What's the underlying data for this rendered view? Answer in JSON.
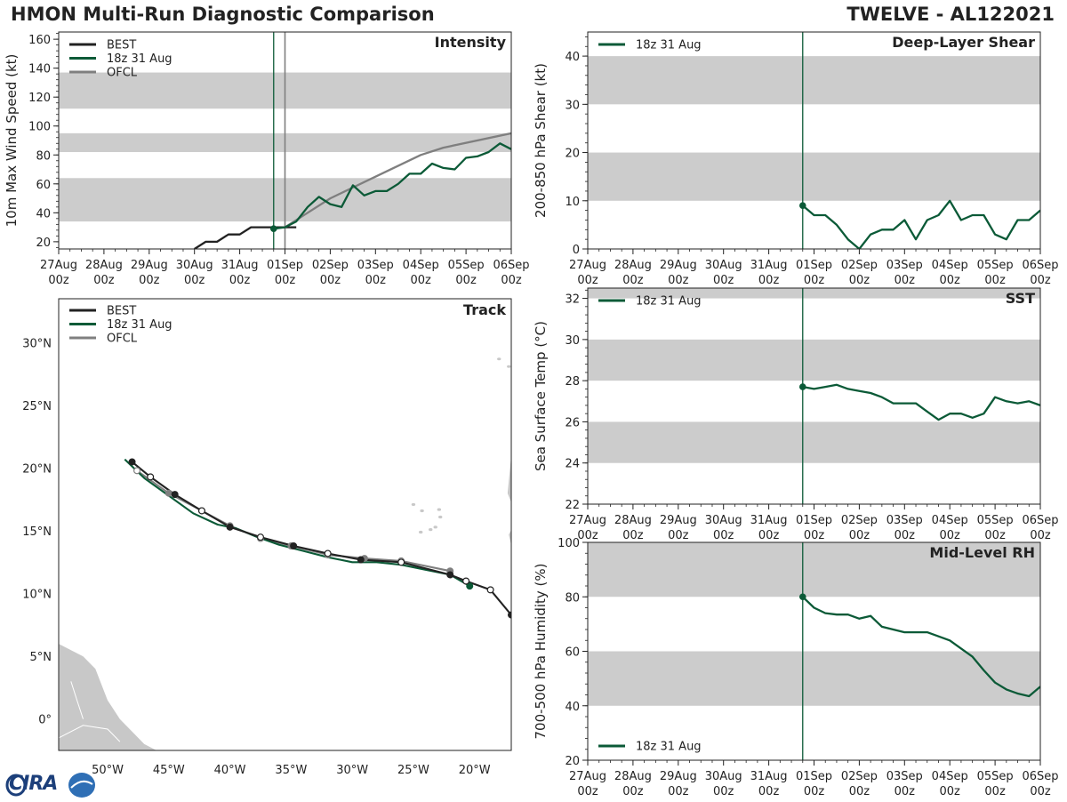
{
  "header": {
    "title_left": "HMON Multi-Run Diagnostic Comparison",
    "title_right": "TWELVE - AL122021"
  },
  "logo": {
    "text": "CIRA"
  },
  "colors": {
    "best": "#222222",
    "run": "#0b5a37",
    "ofcl": "#7f7f7f",
    "band": "#cccccc",
    "land": "#c8c8c8"
  },
  "time_axis": {
    "tick_labels": [
      "27Aug",
      "28Aug",
      "29Aug",
      "30Aug",
      "31Aug",
      "01Sep",
      "02Sep",
      "03Sep",
      "04Sep",
      "05Sep",
      "06Sep"
    ],
    "tick_sublabel": "00z",
    "range_days": [
      0,
      10
    ]
  },
  "chart_data": [
    {
      "id": "intensity",
      "type": "line",
      "title": "Intensity",
      "ylabel": "10m Max Wind Speed (kt)",
      "ylim": [
        15,
        165
      ],
      "yticks": [
        20,
        40,
        60,
        80,
        100,
        120,
        140,
        160
      ],
      "bands": [
        [
          34,
          64
        ],
        [
          82,
          95
        ],
        [
          112,
          137
        ]
      ],
      "legend": [
        "BEST",
        "18z 31 Aug",
        "OFCL"
      ],
      "init_day": 4.75,
      "ofcl_line_day": 5.0,
      "series": [
        {
          "name": "BEST",
          "x": [
            3.0,
            3.25,
            3.5,
            3.75,
            4.0,
            4.25,
            4.5,
            4.75,
            5.0,
            5.25
          ],
          "values": [
            15,
            20,
            20,
            25,
            25,
            30,
            30,
            30,
            30,
            30
          ]
        },
        {
          "name": "18z 31 Aug",
          "x": [
            4.75,
            5.0,
            5.25,
            5.5,
            5.75,
            6.0,
            6.25,
            6.5,
            6.75,
            7.0,
            7.25,
            7.5,
            7.75,
            8.0,
            8.25,
            8.5,
            8.75,
            9.0,
            9.25,
            9.5,
            9.75,
            10.0
          ],
          "values": [
            29,
            30,
            34,
            44,
            51,
            46,
            44,
            59,
            52,
            55,
            55,
            60,
            67,
            67,
            74,
            71,
            70,
            78,
            79,
            82,
            88,
            84
          ]
        },
        {
          "name": "OFCL",
          "x": [
            5.0,
            5.5,
            6.0,
            7.0,
            8.0,
            8.5,
            10.0
          ],
          "values": [
            30,
            40,
            50,
            65,
            80,
            85,
            95
          ]
        }
      ]
    },
    {
      "id": "shear",
      "type": "line",
      "title": "Deep-Layer Shear",
      "ylabel": "200-850 hPa Shear (kt)",
      "ylim": [
        0,
        45
      ],
      "yticks": [
        0,
        10,
        20,
        30,
        40
      ],
      "bands": [
        [
          10,
          20
        ],
        [
          30,
          40
        ]
      ],
      "legend": [
        "18z 31 Aug"
      ],
      "init_day": 4.75,
      "series": [
        {
          "name": "18z 31 Aug",
          "x": [
            4.75,
            5.0,
            5.25,
            5.5,
            5.75,
            6.0,
            6.25,
            6.5,
            6.75,
            7.0,
            7.25,
            7.5,
            7.75,
            8.0,
            8.25,
            8.5,
            8.75,
            9.0,
            9.25,
            9.5,
            9.75,
            10.0
          ],
          "values": [
            9,
            7,
            7,
            5,
            2,
            0,
            3,
            4,
            4,
            6,
            2,
            6,
            7,
            10,
            6,
            7,
            7,
            3,
            2,
            6,
            6,
            8
          ]
        }
      ]
    },
    {
      "id": "sst",
      "type": "line",
      "title": "SST",
      "ylabel": "Sea Surface Temp (°C)",
      "ylim": [
        22,
        32.5
      ],
      "yticks": [
        22,
        24,
        26,
        28,
        30,
        32
      ],
      "bands": [
        [
          24,
          26
        ],
        [
          28,
          30
        ],
        [
          32,
          32.5
        ]
      ],
      "legend": [
        "18z 31 Aug"
      ],
      "init_day": 4.75,
      "series": [
        {
          "name": "18z 31 Aug",
          "x": [
            4.75,
            5.0,
            5.25,
            5.5,
            5.75,
            6.0,
            6.25,
            6.5,
            6.75,
            7.0,
            7.25,
            7.5,
            7.75,
            8.0,
            8.25,
            8.5,
            8.75,
            9.0,
            9.25,
            9.5,
            9.75,
            10.0
          ],
          "values": [
            27.7,
            27.6,
            27.7,
            27.8,
            27.6,
            27.5,
            27.4,
            27.2,
            26.9,
            26.9,
            26.9,
            26.5,
            26.1,
            26.4,
            26.4,
            26.2,
            26.4,
            27.2,
            27.0,
            26.9,
            27.0,
            26.8
          ]
        }
      ]
    },
    {
      "id": "rh",
      "type": "line",
      "title": "Mid-Level RH",
      "ylabel": "700-500 hPa Humidity (%)",
      "ylim": [
        20,
        100
      ],
      "yticks": [
        20,
        40,
        60,
        80,
        100
      ],
      "bands": [
        [
          40,
          60
        ],
        [
          80,
          100
        ]
      ],
      "legend": [
        "18z 31 Aug"
      ],
      "legend_position": "bottom-left",
      "init_day": 4.75,
      "series": [
        {
          "name": "18z 31 Aug",
          "x": [
            4.75,
            5.0,
            5.25,
            5.5,
            5.75,
            6.0,
            6.25,
            6.5,
            6.75,
            7.0,
            7.25,
            7.5,
            7.75,
            8.0,
            8.25,
            8.5,
            8.75,
            9.0,
            9.25,
            9.5,
            9.75,
            10.0
          ],
          "values": [
            80,
            76,
            74,
            73.5,
            73.5,
            72,
            73,
            69,
            68,
            67,
            67,
            67,
            65.5,
            64,
            61,
            58,
            53,
            48.5,
            46,
            44.5,
            43.5,
            47
          ]
        }
      ]
    },
    {
      "id": "track",
      "type": "scatter",
      "title": "Track",
      "xlim": [
        -54,
        -17
      ],
      "ylim": [
        -2.5,
        33.5
      ],
      "xticks": [
        -50,
        -45,
        -40,
        -35,
        -30,
        -25,
        -20
      ],
      "xtick_labels": [
        "50°W",
        "45°W",
        "40°W",
        "35°W",
        "30°W",
        "25°W",
        "20°W"
      ],
      "yticks": [
        0,
        5,
        10,
        15,
        20,
        25,
        30
      ],
      "ytick_labels": [
        "0°",
        "5°N",
        "10°N",
        "15°N",
        "20°N",
        "25°N",
        "30°N"
      ],
      "legend": [
        "BEST",
        "18z 31 Aug",
        "OFCL"
      ],
      "series": [
        {
          "name": "BEST",
          "lon": [
            -17.0,
            -18.7,
            -20.7,
            -22.0,
            -26.0,
            -29.3,
            -32.0,
            -34.8,
            -37.5,
            -40.0,
            -42.3,
            -44.5,
            -46.5,
            -48.0
          ],
          "lat": [
            8.3,
            10.3,
            11.0,
            11.5,
            12.5,
            12.7,
            13.2,
            13.8,
            14.5,
            15.3,
            16.6,
            17.9,
            19.3,
            20.5
          ],
          "filled": [
            true,
            false,
            false,
            true,
            false,
            true,
            false,
            true,
            false,
            true,
            false,
            true,
            false,
            true
          ]
        },
        {
          "name": "18z 31 Aug",
          "lon": [
            -20.4,
            -22.0,
            -24.0,
            -26.0,
            -28.0,
            -30.0,
            -32.0,
            -34.0,
            -36.0,
            -38.0,
            -39.5,
            -41.0,
            -43.0,
            -45.0,
            -47.0,
            -48.6
          ],
          "lat": [
            10.6,
            11.5,
            11.9,
            12.3,
            12.5,
            12.5,
            12.9,
            13.4,
            13.9,
            14.6,
            15.2,
            15.5,
            16.4,
            17.8,
            19.2,
            20.7
          ],
          "filled": [
            true,
            false,
            false,
            false,
            false,
            false,
            false,
            false,
            false,
            false,
            false,
            false,
            false,
            false,
            false,
            false
          ]
        },
        {
          "name": "OFCL",
          "lon": [
            -22.0,
            -26.0,
            -29.0,
            -32.0,
            -35.0,
            -37.5,
            -40.0,
            -42.3,
            -45.0,
            -47.6
          ],
          "lat": [
            11.8,
            12.6,
            12.8,
            13.1,
            13.8,
            14.4,
            15.4,
            16.6,
            18.0,
            19.8
          ],
          "filled": [
            true,
            false,
            true,
            false,
            true,
            false,
            true,
            false,
            true,
            false
          ]
        }
      ]
    }
  ]
}
